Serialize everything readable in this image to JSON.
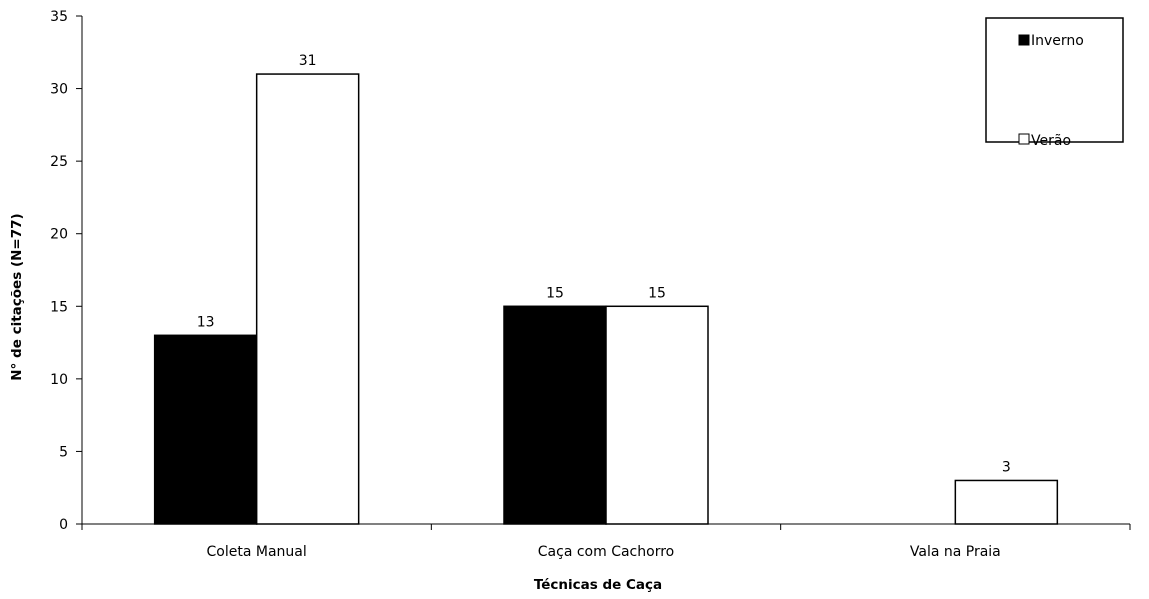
{
  "chart_data": {
    "type": "bar",
    "title": "",
    "xlabel": "Técnicas de Caça",
    "ylabel": "N° de citações (N=77)",
    "categories": [
      "Coleta Manual",
      "Caça com Cachorro",
      "Vala na Praia"
    ],
    "series": [
      {
        "name": "Inverno",
        "values": [
          13,
          15,
          0
        ],
        "labels": [
          "13",
          "15",
          ""
        ],
        "color": "#000000"
      },
      {
        "name": "Verão",
        "values": [
          31,
          15,
          3
        ],
        "labels": [
          "31",
          "15",
          "3"
        ],
        "color": "#ffffff"
      }
    ],
    "ylim": [
      0,
      35
    ],
    "yticks": [
      "0",
      "5",
      "10",
      "15",
      "20",
      "25",
      "30",
      "35"
    ],
    "grid": false,
    "legend_position": "top-right"
  }
}
